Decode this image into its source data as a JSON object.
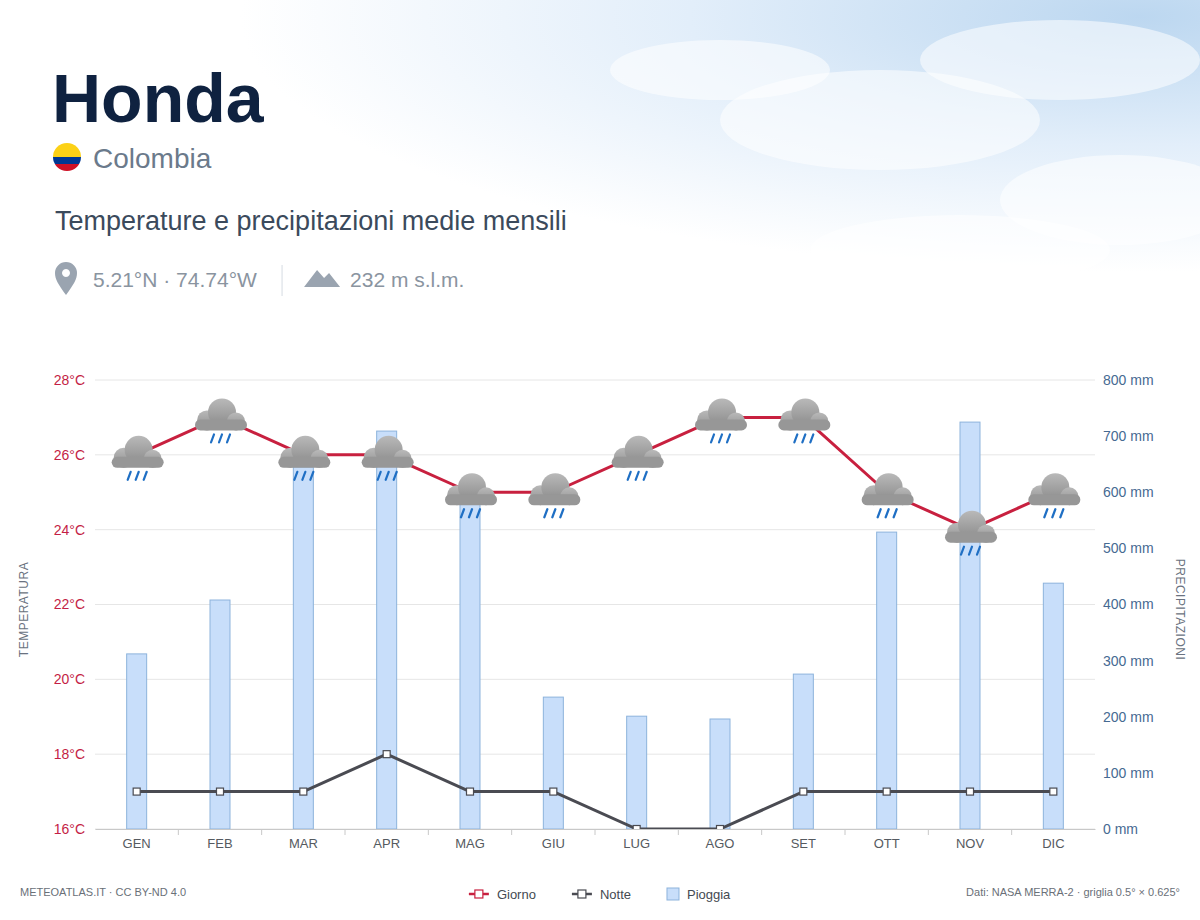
{
  "chart_data": {
    "type": "bar",
    "title": "Honda",
    "subtitle": "Colombia",
    "heading": "Temperature e precipitazioni medie mensili",
    "coordinates": "5.21°N · 74.74°W",
    "elevation": "232 m s.l.m.",
    "credit": "METEOATLAS.IT · CC BY-ND 4.0",
    "source": "Dati: NASA MERRA-2 · griglia 0.5° × 0.625°",
    "ylabel": "TEMPERATURA",
    "y2label": "PRECIPITAZIONI",
    "categories": [
      "GEN",
      "FEB",
      "MAR",
      "APR",
      "MAG",
      "GIU",
      "LUG",
      "AGO",
      "SET",
      "OTT",
      "NOV",
      "DIC"
    ],
    "series": [
      {
        "name": "Giorno",
        "type": "line",
        "color": "#c8203f",
        "marker": "square",
        "values": [
          26,
          27,
          26,
          26,
          25,
          25,
          26,
          27,
          27,
          25,
          24,
          25
        ]
      },
      {
        "name": "Notte",
        "type": "line",
        "color": "#4a4b52",
        "marker": "square",
        "values": [
          17,
          17,
          17,
          18,
          17,
          17,
          16,
          16,
          17,
          17,
          17,
          17
        ]
      },
      {
        "name": "Pioggia",
        "type": "bar",
        "axis": "y2",
        "color": "#c8defa",
        "values": [
          312,
          408,
          645,
          709,
          590,
          235,
          201,
          196,
          276,
          529,
          725,
          438
        ]
      }
    ],
    "ylim": [
      16,
      28
    ],
    "yticks": [
      {
        "value": 16,
        "label": "16°C"
      },
      {
        "value": 18,
        "label": "18°C"
      },
      {
        "value": 20,
        "label": "20°C"
      },
      {
        "value": 22,
        "label": "22°C"
      },
      {
        "value": 24,
        "label": "24°C"
      },
      {
        "value": 26,
        "label": "26°C"
      },
      {
        "value": 28,
        "label": "28°C"
      }
    ],
    "y2lim": [
      0,
      800
    ],
    "y2ticks": [
      {
        "value": 0,
        "label": "0 mm"
      },
      {
        "value": 100,
        "label": "100 mm"
      },
      {
        "value": 200,
        "label": "200 mm"
      },
      {
        "value": 300,
        "label": "300 mm"
      },
      {
        "value": 400,
        "label": "400 mm"
      },
      {
        "value": 500,
        "label": "500 mm"
      },
      {
        "value": 600,
        "label": "600 mm"
      },
      {
        "value": 700,
        "label": "700 mm"
      },
      {
        "value": 800,
        "label": "800 mm"
      }
    ],
    "grid": true,
    "legend": "bottom"
  }
}
